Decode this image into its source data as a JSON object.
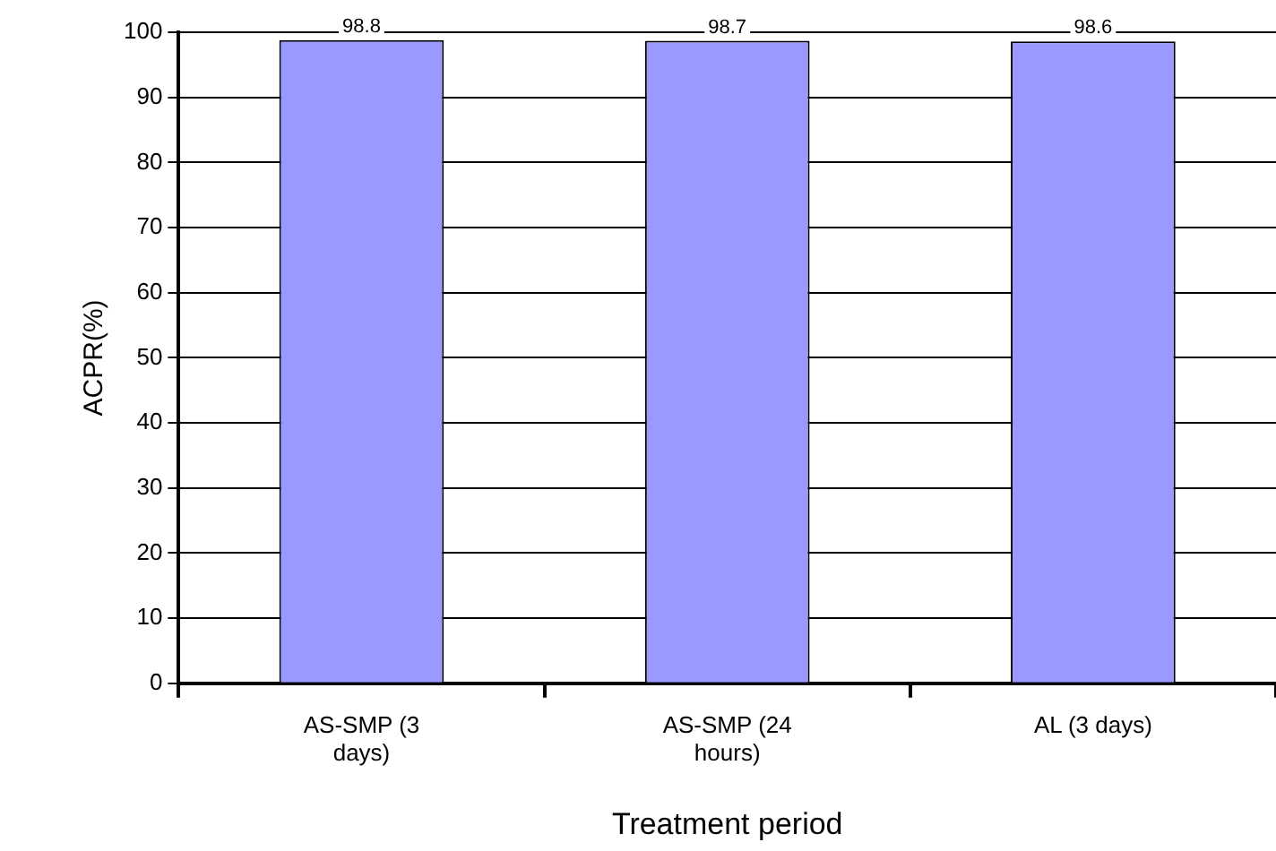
{
  "chart_data": {
    "type": "bar",
    "xlabel": "Treatment period",
    "ylabel": "ACPR(%)",
    "categories": [
      "AS-SMP (3 days)",
      "AS-SMP (24 hours)",
      "AL (3 days)"
    ],
    "values": [
      98.8,
      98.7,
      98.6
    ],
    "color": "#9999ff",
    "ylim": [
      0,
      100
    ],
    "yticks": [
      0,
      10,
      20,
      30,
      40,
      50,
      60,
      70,
      80,
      90,
      100
    ],
    "grid": "y",
    "data_labels": true,
    "legend": false
  }
}
